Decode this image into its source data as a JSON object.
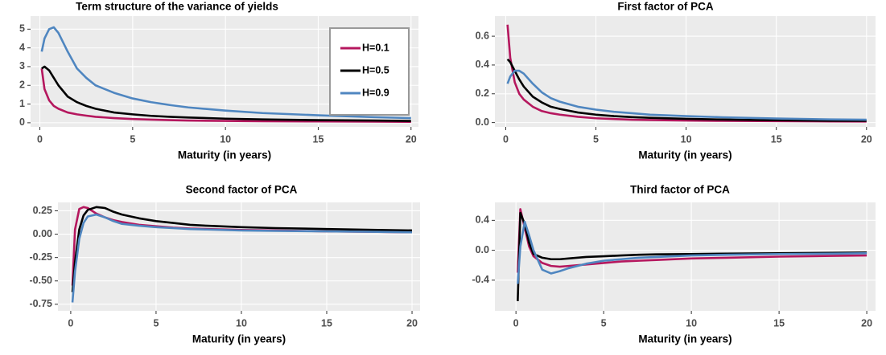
{
  "chart_data": [
    {
      "type": "line",
      "title": "Term structure of the variance of yields",
      "x_label": "Maturity (in years)",
      "x": [
        0.1,
        0.25,
        0.5,
        0.75,
        1,
        1.5,
        2,
        2.5,
        3,
        4,
        5,
        6,
        7,
        8,
        10,
        12,
        15,
        18,
        20
      ],
      "series": [
        {
          "name": "H=0.1",
          "color": "#b5175e",
          "values": [
            2.9,
            1.8,
            1.2,
            0.9,
            0.75,
            0.55,
            0.45,
            0.38,
            0.32,
            0.25,
            0.2,
            0.17,
            0.14,
            0.12,
            0.1,
            0.08,
            0.07,
            0.06,
            0.05
          ]
        },
        {
          "name": "H=0.5",
          "color": "#000000",
          "values": [
            2.9,
            3.0,
            2.8,
            2.4,
            2.0,
            1.4,
            1.1,
            0.9,
            0.75,
            0.55,
            0.45,
            0.37,
            0.32,
            0.28,
            0.22,
            0.18,
            0.14,
            0.12,
            0.1
          ]
        },
        {
          "name": "H=0.9",
          "color": "#4f86c0",
          "values": [
            3.8,
            4.5,
            5.0,
            5.1,
            4.8,
            3.8,
            2.9,
            2.4,
            2.0,
            1.6,
            1.3,
            1.1,
            0.95,
            0.82,
            0.65,
            0.52,
            0.4,
            0.3,
            0.25
          ]
        }
      ],
      "xlim": [
        -0.5,
        20.4
      ],
      "xticks": [
        0,
        5,
        10,
        15,
        20
      ],
      "ylim": [
        -0.22,
        5.7
      ],
      "yticks": [
        0,
        1,
        2,
        3,
        4,
        5
      ],
      "grid": true,
      "legend": "top-right"
    },
    {
      "type": "line",
      "title": "First factor of PCA",
      "x_label": "Maturity (in years)",
      "x": [
        0.1,
        0.25,
        0.5,
        0.75,
        1,
        1.5,
        2,
        2.5,
        3,
        4,
        5,
        6,
        7,
        8,
        10,
        12,
        15,
        18,
        20
      ],
      "series": [
        {
          "color": "#b5175e",
          "values": [
            0.68,
            0.45,
            0.28,
            0.2,
            0.16,
            0.11,
            0.08,
            0.065,
            0.055,
            0.04,
            0.03,
            0.025,
            0.02,
            0.018,
            0.014,
            0.012,
            0.01,
            0.008,
            0.007
          ]
        },
        {
          "color": "#000000",
          "values": [
            0.44,
            0.42,
            0.36,
            0.3,
            0.25,
            0.18,
            0.14,
            0.11,
            0.095,
            0.07,
            0.055,
            0.045,
            0.038,
            0.033,
            0.026,
            0.021,
            0.016,
            0.013,
            0.012
          ]
        },
        {
          "color": "#4f86c0",
          "values": [
            0.27,
            0.32,
            0.36,
            0.36,
            0.34,
            0.27,
            0.21,
            0.17,
            0.145,
            0.11,
            0.09,
            0.075,
            0.065,
            0.055,
            0.045,
            0.037,
            0.028,
            0.022,
            0.02
          ]
        }
      ],
      "xlim": [
        -0.6,
        20.5
      ],
      "xticks": [
        0,
        5,
        10,
        15,
        20
      ],
      "ylim": [
        -0.03,
        0.74
      ],
      "yticks": [
        {
          "value": 0,
          "label": "0.0"
        },
        0.2,
        0.4,
        0.6
      ],
      "grid": true
    },
    {
      "type": "line",
      "title": "Second factor of PCA",
      "x_label": "Maturity (in years)",
      "x": [
        0.1,
        0.25,
        0.5,
        0.75,
        1,
        1.5,
        2,
        2.5,
        3,
        4,
        5,
        6,
        7,
        8,
        10,
        12,
        15,
        18,
        20
      ],
      "series": [
        {
          "color": "#b5175e",
          "values": [
            -0.55,
            0.05,
            0.27,
            0.29,
            0.28,
            0.22,
            0.18,
            0.15,
            0.13,
            0.1,
            0.085,
            0.07,
            0.06,
            0.055,
            0.045,
            0.04,
            0.03,
            0.025,
            0.02
          ]
        },
        {
          "color": "#000000",
          "values": [
            -0.62,
            -0.3,
            0.05,
            0.2,
            0.26,
            0.29,
            0.28,
            0.24,
            0.21,
            0.17,
            0.14,
            0.12,
            0.1,
            0.09,
            0.075,
            0.065,
            0.055,
            0.045,
            0.04
          ]
        },
        {
          "color": "#4f86c0",
          "values": [
            -0.73,
            -0.4,
            -0.05,
            0.12,
            0.19,
            0.21,
            0.18,
            0.14,
            0.11,
            0.09,
            0.075,
            0.065,
            0.055,
            0.05,
            0.04,
            0.035,
            0.03,
            0.025,
            0.02
          ]
        }
      ],
      "xlim": [
        -0.75,
        20.47
      ],
      "xticks": [
        0,
        5,
        10,
        15,
        20
      ],
      "ylim": [
        -0.82,
        0.34
      ],
      "yticks": [
        0.25,
        {
          "value": 0,
          "label": "0.00"
        },
        -0.25,
        {
          "value": -0.5,
          "label": "-0.50"
        },
        -0.75
      ],
      "grid": true
    },
    {
      "type": "line",
      "title": "Third factor of PCA",
      "x_label": "Maturity (in years)",
      "x": [
        0.1,
        0.25,
        0.5,
        0.75,
        1,
        1.5,
        2,
        2.5,
        3,
        4,
        5,
        6,
        7,
        8,
        10,
        12,
        15,
        18,
        20
      ],
      "series": [
        {
          "color": "#b5175e",
          "values": [
            -0.3,
            0.55,
            0.3,
            0.05,
            -0.08,
            -0.17,
            -0.21,
            -0.22,
            -0.21,
            -0.19,
            -0.17,
            -0.15,
            -0.14,
            -0.13,
            -0.11,
            -0.1,
            -0.085,
            -0.075,
            -0.07
          ]
        },
        {
          "color": "#000000",
          "values": [
            -0.68,
            0.5,
            0.35,
            0.1,
            -0.05,
            -0.1,
            -0.12,
            -0.12,
            -0.11,
            -0.09,
            -0.08,
            -0.07,
            -0.06,
            -0.055,
            -0.05,
            -0.045,
            -0.04,
            -0.035,
            -0.03
          ]
        },
        {
          "color": "#4f86c0",
          "values": [
            -0.45,
            0.05,
            0.38,
            0.2,
            0.0,
            -0.26,
            -0.31,
            -0.28,
            -0.24,
            -0.18,
            -0.14,
            -0.12,
            -0.1,
            -0.09,
            -0.07,
            -0.06,
            -0.05,
            -0.045,
            -0.04
          ]
        }
      ],
      "xlim": [
        -1.2,
        20.5
      ],
      "xticks": [
        0,
        5,
        10,
        15,
        20
      ],
      "ylim": [
        -0.81,
        0.64
      ],
      "yticks": [
        0.4,
        {
          "value": 0,
          "label": "0.0"
        },
        -0.4
      ],
      "grid": true
    }
  ]
}
